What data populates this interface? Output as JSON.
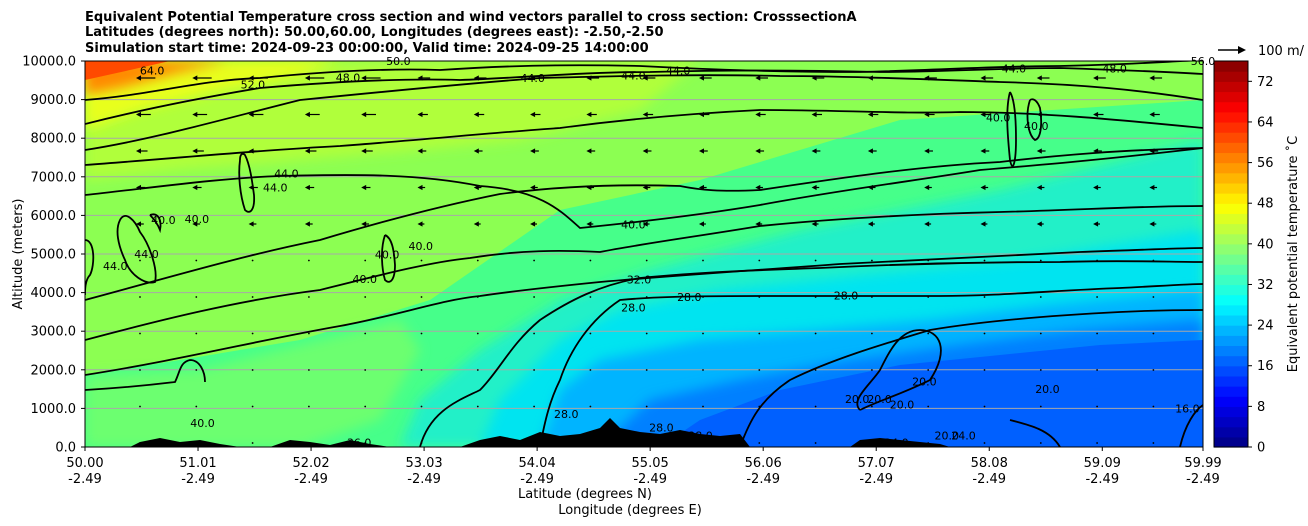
{
  "chart_data": {
    "type": "heatmap",
    "title_lines": [
      "Equivalent Potential Temperature cross section and wind vectors parallel to cross section: CrosssectionA",
      "Latitudes (degrees north): 50.00,60.00, Longitudes (degrees east): -2.50,-2.50",
      "Simulation start time: 2024-09-23 00:00:00, Valid time: 2024-09-25 14:00:00"
    ],
    "xlabel_lines": [
      "Latitude (degrees N)",
      "Longitude (degrees E)"
    ],
    "ylabel": "Altitude (meters)",
    "x_ticks": [
      {
        "lat": "50.00",
        "lon": "-2.49"
      },
      {
        "lat": "51.01",
        "lon": "-2.49"
      },
      {
        "lat": "52.02",
        "lon": "-2.49"
      },
      {
        "lat": "53.03",
        "lon": "-2.49"
      },
      {
        "lat": "54.04",
        "lon": "-2.49"
      },
      {
        "lat": "55.05",
        "lon": "-2.49"
      },
      {
        "lat": "56.06",
        "lon": "-2.49"
      },
      {
        "lat": "57.07",
        "lon": "-2.49"
      },
      {
        "lat": "58.08",
        "lon": "-2.49"
      },
      {
        "lat": "59.09",
        "lon": "-2.49"
      },
      {
        "lat": "59.99",
        "lon": "-2.49"
      }
    ],
    "xlim": [
      50.0,
      59.99
    ],
    "y_ticks": [
      "0.0",
      "1000.0",
      "2000.0",
      "3000.0",
      "4000.0",
      "5000.0",
      "6000.0",
      "7000.0",
      "8000.0",
      "9000.0",
      "10000.0"
    ],
    "ylim": [
      0,
      10000
    ],
    "grid": "horizontal",
    "colorbar": {
      "label": "Equivalent potential temperature ˚C",
      "ticks": [
        "0",
        "8",
        "16",
        "24",
        "32",
        "40",
        "48",
        "56",
        "64",
        "72"
      ],
      "range": [
        0,
        76
      ],
      "step": 2
    },
    "quiver_key": "100 m/",
    "contour_levels": [
      20,
      24,
      28,
      32,
      36,
      40,
      44,
      48,
      52,
      56,
      64
    ],
    "contour_labels": [
      {
        "text": "64.0",
        "x": 50.6,
        "y": 9750
      },
      {
        "text": "52.0",
        "x": 51.5,
        "y": 9390
      },
      {
        "text": "48.0",
        "x": 52.35,
        "y": 9570
      },
      {
        "text": "50.0",
        "x": 52.8,
        "y": 10000
      },
      {
        "text": "44.0",
        "x": 54.0,
        "y": 9560
      },
      {
        "text": "44.0",
        "x": 54.9,
        "y": 9620
      },
      {
        "text": "44.0",
        "x": 55.3,
        "y": 9760
      },
      {
        "text": "44.0",
        "x": 58.3,
        "y": 9810
      },
      {
        "text": "48.0",
        "x": 59.2,
        "y": 9800
      },
      {
        "text": "56.0",
        "x": 59.99,
        "y": 10000
      },
      {
        "text": "40.0",
        "x": 58.16,
        "y": 8540
      },
      {
        "text": "40.0",
        "x": 58.5,
        "y": 8320
      },
      {
        "text": "44.0",
        "x": 51.8,
        "y": 7080
      },
      {
        "text": "44.0",
        "x": 51.7,
        "y": 6720
      },
      {
        "text": "40.0",
        "x": 50.7,
        "y": 5880
      },
      {
        "text": "40.0",
        "x": 51.0,
        "y": 5910
      },
      {
        "text": "44.0",
        "x": 50.55,
        "y": 5000
      },
      {
        "text": "44.0",
        "x": 50.27,
        "y": 4690
      },
      {
        "text": "40.0",
        "x": 54.9,
        "y": 5760
      },
      {
        "text": "40.0",
        "x": 53.0,
        "y": 5210
      },
      {
        "text": "40.0",
        "x": 52.7,
        "y": 4990
      },
      {
        "text": "40.0",
        "x": 52.5,
        "y": 4350
      },
      {
        "text": "32.0",
        "x": 54.95,
        "y": 4340
      },
      {
        "text": "28.0",
        "x": 54.9,
        "y": 3620
      },
      {
        "text": "28.0",
        "x": 55.4,
        "y": 3880
      },
      {
        "text": "28.0",
        "x": 56.8,
        "y": 3920
      },
      {
        "text": "40.0",
        "x": 51.05,
        "y": 620
      },
      {
        "text": "36.0",
        "x": 52.45,
        "y": 120
      },
      {
        "text": "28.0",
        "x": 54.3,
        "y": 850
      },
      {
        "text": "28.0",
        "x": 55.15,
        "y": 500
      },
      {
        "text": "28.0",
        "x": 55.5,
        "y": 300
      },
      {
        "text": "20.0",
        "x": 56.9,
        "y": 1250
      },
      {
        "text": "20.0",
        "x": 57.1,
        "y": 1250
      },
      {
        "text": "20.0",
        "x": 57.3,
        "y": 1100
      },
      {
        "text": "20.0",
        "x": 57.5,
        "y": 1700
      },
      {
        "text": "20.0",
        "x": 58.6,
        "y": 1500
      },
      {
        "text": "24.0",
        "x": 57.25,
        "y": 120
      },
      {
        "text": "24.0",
        "x": 57.85,
        "y": 300
      },
      {
        "text": "20.0",
        "x": 57.7,
        "y": 300
      },
      {
        "text": "16.0",
        "x": 59.85,
        "y": 1000
      }
    ]
  }
}
